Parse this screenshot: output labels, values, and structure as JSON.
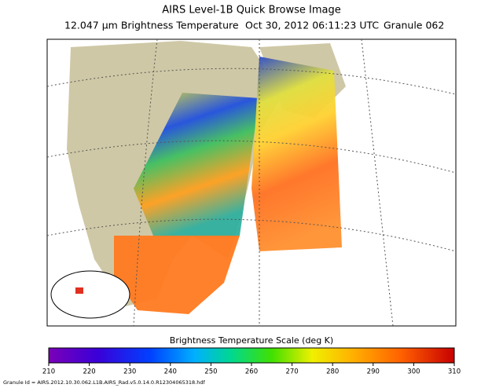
{
  "header": {
    "title": "AIRS Level-1B Quick Browse Image",
    "channel": "12.047 µm Brightness Temperature",
    "time": "Oct 30, 2012 06:11:23 UTC",
    "granule": "Granule 062"
  },
  "colorbar": {
    "label": "Brightness Temperature Scale (deg K)",
    "ticks": [
      210,
      220,
      230,
      240,
      250,
      260,
      270,
      280,
      290,
      300,
      310
    ]
  },
  "footer": {
    "granule_id": "Granule Id = AIRS.2012.10.30.062.L1B.AIRS_Rad.v5.0.14.0.R12304065318.hdf"
  }
}
